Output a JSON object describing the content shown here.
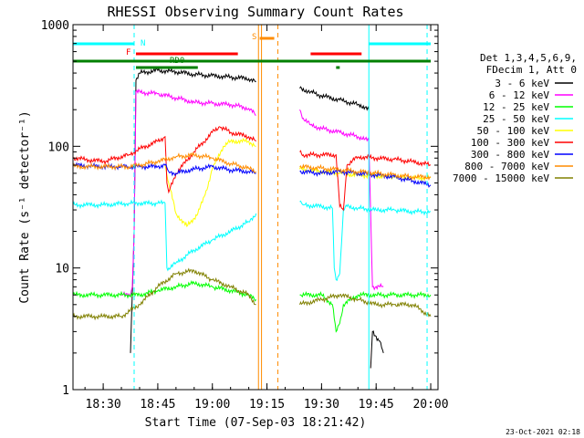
{
  "chart_data": {
    "type": "line",
    "title": "RHESSI Observing Summary Count Rates",
    "xlabel": "Start Time (07-Sep-03 18:21:42)",
    "ylabel": "Count Rate (s⁻¹ detector⁻¹)",
    "yscale": "log",
    "ylim": [
      1,
      1000
    ],
    "xlim": [
      "18:21:42",
      "20:02:00"
    ],
    "x_ticks": [
      "18:30",
      "18:45",
      "19:00",
      "19:15",
      "19:30",
      "19:45",
      "20:00"
    ],
    "y_ticks": [
      "1",
      "10",
      "100",
      "1000"
    ],
    "footer": "23-Oct-2021 02:18",
    "legend_header": [
      "Det 1,3,4,5,6,9,",
      "FDecim 1, Att 0"
    ],
    "legend_position": "right",
    "series": [
      {
        "name": "3 - 6 keV",
        "color": "#000000",
        "segments": [
          {
            "t": [
              "18:37:30",
              "18:38:30",
              "18:39",
              "18:40",
              "18:45",
              "18:50",
              "18:55",
              "19:00",
              "19:05",
              "19:10",
              "19:12"
            ],
            "v": [
              2,
              20,
              350,
              400,
              420,
              410,
              390,
              380,
              370,
              360,
              340
            ]
          },
          {
            "t": [
              "19:24",
              "19:27",
              "19:30",
              "19:35",
              "19:40",
              "19:42",
              "19:43"
            ],
            "v": [
              300,
              280,
              260,
              240,
              220,
              210,
              200
            ]
          },
          {
            "t": [
              "19:43:30",
              "19:44",
              "19:46",
              "19:47"
            ],
            "v": [
              1.5,
              3,
              2.5,
              2
            ]
          }
        ]
      },
      {
        "name": "6 - 12 keV",
        "color": "#ff00ff",
        "segments": [
          {
            "t": [
              "18:35",
              "18:37:30",
              "18:38",
              "18:38:30",
              "18:39",
              "18:45",
              "18:50",
              "18:55",
              "19:00",
              "19:05",
              "19:10",
              "19:12"
            ],
            "v": [
              6,
              6,
              7,
              20,
              280,
              270,
              250,
              230,
              225,
              220,
              205,
              180
            ]
          },
          {
            "t": [
              "19:24",
              "19:25",
              "19:27",
              "19:30",
              "19:35",
              "19:40",
              "19:42",
              "19:43",
              "19:44",
              "19:46",
              "19:47"
            ],
            "v": [
              200,
              170,
              150,
              140,
              130,
              120,
              115,
              110,
              7,
              7,
              7
            ]
          }
        ]
      },
      {
        "name": "12 - 25 keV",
        "color": "#00ff00",
        "segments": [
          {
            "t": [
              "18:21:42",
              "18:30",
              "18:37",
              "18:40",
              "18:45",
              "18:50",
              "18:55",
              "19:00",
              "19:05",
              "19:10",
              "19:12"
            ],
            "v": [
              6,
              6,
              6,
              6,
              6.5,
              7,
              7.5,
              7,
              6.5,
              6,
              5.5
            ]
          },
          {
            "t": [
              "19:24",
              "19:30",
              "19:33",
              "19:34",
              "19:35",
              "19:36",
              "19:40",
              "19:45",
              "19:50",
              "19:55",
              "20:00"
            ],
            "v": [
              6,
              6,
              5,
              3,
              3.5,
              5,
              6,
              6,
              6,
              6,
              6
            ]
          }
        ]
      },
      {
        "name": "25 - 50 keV",
        "color": "#00ffff",
        "segments": [
          {
            "t": [
              "18:21:42",
              "18:30",
              "18:37",
              "18:40",
              "18:45",
              "18:47",
              "18:47:30",
              "18:48",
              "18:50",
              "18:55",
              "19:00",
              "19:05",
              "19:10",
              "19:12"
            ],
            "v": [
              33,
              33,
              34,
              34,
              34,
              34,
              10,
              10,
              11,
              14,
              17,
              20,
              24,
              28
            ]
          },
          {
            "t": [
              "19:24",
              "19:25",
              "19:30",
              "19:33",
              "19:33:30",
              "19:34",
              "19:35",
              "19:36",
              "19:37",
              "19:40",
              "19:45",
              "19:50",
              "19:55",
              "20:00"
            ],
            "v": [
              35,
              33,
              32,
              31,
              10,
              8,
              9,
              30,
              32,
              31,
              30,
              30,
              29,
              29
            ]
          }
        ]
      },
      {
        "name": "50 - 100 keV",
        "color": "#ffff00",
        "segments": [
          {
            "t": [
              "18:47",
              "18:48",
              "18:50",
              "18:53",
              "18:56",
              "18:58",
              "19:00",
              "19:03",
              "19:05",
              "19:10",
              "19:12"
            ],
            "v": [
              70,
              50,
              28,
              22,
              28,
              40,
              65,
              100,
              110,
              110,
              100
            ]
          },
          {
            "t": [
              "19:24",
              "19:30",
              "19:35",
              "19:40",
              "19:45",
              "19:50",
              "19:55",
              "20:00"
            ],
            "v": [
              65,
              62,
              60,
              58,
              57,
              56,
              55,
              55
            ]
          }
        ]
      },
      {
        "name": "100 - 300 keV",
        "color": "#ff0000",
        "segments": [
          {
            "t": [
              "18:21:42",
              "18:30",
              "18:37",
              "18:40",
              "18:45",
              "18:47",
              "18:47:30",
              "18:48",
              "18:50",
              "18:55",
              "19:00",
              "19:02",
              "19:05",
              "19:10",
              "19:12"
            ],
            "v": [
              80,
              75,
              85,
              95,
              110,
              120,
              50,
              42,
              60,
              90,
              130,
              145,
              130,
              120,
              110
            ]
          },
          {
            "t": [
              "19:24",
              "19:25",
              "19:30",
              "19:34",
              "19:35",
              "19:36",
              "19:37",
              "19:40",
              "19:45",
              "19:50",
              "19:55",
              "20:00"
            ],
            "v": [
              90,
              85,
              85,
              85,
              32,
              30,
              70,
              82,
              80,
              78,
              75,
              70
            ]
          }
        ]
      },
      {
        "name": "300 - 800 keV",
        "color": "#0000ff",
        "segments": [
          {
            "t": [
              "18:21:42",
              "18:30",
              "18:37",
              "18:40",
              "18:45",
              "18:47",
              "18:48",
              "18:50",
              "18:55",
              "19:00",
              "19:05",
              "19:10",
              "19:12"
            ],
            "v": [
              70,
              68,
              68,
              68,
              68,
              70,
              62,
              60,
              65,
              68,
              64,
              62,
              60
            ]
          },
          {
            "t": [
              "19:24",
              "19:30",
              "19:35",
              "19:40",
              "19:45",
              "19:50",
              "19:55",
              "20:00"
            ],
            "v": [
              62,
              60,
              62,
              60,
              58,
              56,
              52,
              48
            ]
          }
        ]
      },
      {
        "name": "800 - 7000 keV",
        "color": "#ff8c00",
        "segments": [
          {
            "t": [
              "18:21:42",
              "18:30",
              "18:37",
              "18:40",
              "18:45",
              "18:50",
              "18:55",
              "19:00",
              "19:05",
              "19:10",
              "19:12"
            ],
            "v": [
              68,
              68,
              68,
              70,
              75,
              82,
              85,
              80,
              72,
              66,
              62
            ]
          },
          {
            "t": [
              "19:24",
              "19:30",
              "19:35",
              "19:40",
              "19:45",
              "19:50",
              "19:55",
              "20:00"
            ],
            "v": [
              68,
              66,
              64,
              62,
              60,
              58,
              56,
              56
            ]
          }
        ]
      },
      {
        "name": "7000 - 15000 keV",
        "color": "#808000",
        "segments": [
          {
            "t": [
              "18:21:42",
              "18:30",
              "18:35",
              "18:40",
              "18:45",
              "18:50",
              "18:55",
              "19:00",
              "19:05",
              "19:10",
              "19:12"
            ],
            "v": [
              4,
              4,
              4,
              5,
              7,
              9,
              9.5,
              8,
              7,
              6,
              5
            ]
          },
          {
            "t": [
              "19:24",
              "19:30",
              "19:35",
              "19:40",
              "19:45",
              "19:50",
              "19:55",
              "20:00"
            ],
            "v": [
              5,
              5.5,
              6,
              5.5,
              5,
              5,
              5,
              4
            ]
          }
        ]
      }
    ],
    "flags": [
      {
        "label": "N",
        "color": "#00ffff",
        "bars": [
          [
            "18:21:42",
            "18:38:30"
          ],
          [
            "19:43",
            "20:00"
          ]
        ]
      },
      {
        "label": "F",
        "color": "#ff0000",
        "bars": [
          [
            "18:39",
            "19:07"
          ],
          [
            "19:27",
            "19:41"
          ]
        ]
      },
      {
        "label": "S",
        "color": "#ff8c00",
        "bars": [
          [
            "19:13",
            "19:17"
          ]
        ]
      },
      {
        "label": "RD0",
        "color": "#008000",
        "bars": [
          [
            "18:21:42",
            "20:00"
          ],
          [
            "18:39",
            "18:56"
          ],
          [
            "19:34",
            "19:35"
          ]
        ]
      }
    ],
    "vertical_markers": [
      {
        "t": "18:21:42",
        "color": "#00ffff",
        "style": "solid"
      },
      {
        "t": "18:38:30",
        "color": "#00ffff",
        "style": "dashed"
      },
      {
        "t": "19:12:40",
        "color": "#ff8c00",
        "style": "solid"
      },
      {
        "t": "19:13:30",
        "color": "#ff8c00",
        "style": "solid"
      },
      {
        "t": "19:18",
        "color": "#ff8c00",
        "style": "dashed"
      },
      {
        "t": "19:43",
        "color": "#00ffff",
        "style": "solid"
      },
      {
        "t": "19:59",
        "color": "#00ffff",
        "style": "dashed"
      }
    ]
  }
}
